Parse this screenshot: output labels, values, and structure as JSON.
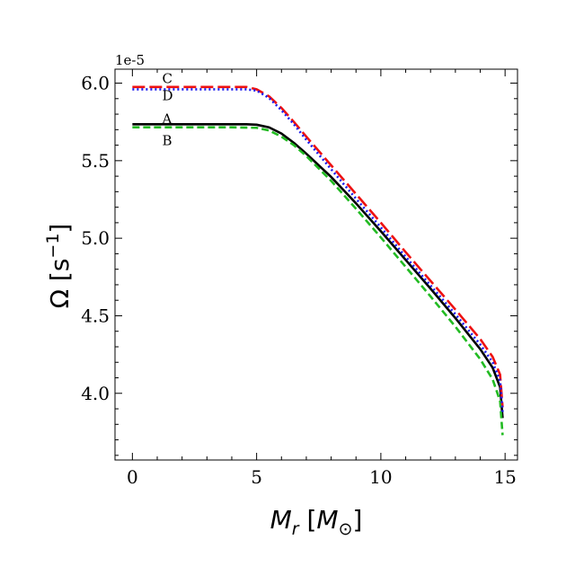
{
  "chart_data": {
    "type": "line",
    "xlabel": "M_r [M_⊙]",
    "ylabel": "Ω [s⁻¹]",
    "y_offset_text": "1e-5",
    "xlim": [
      -0.7,
      15.5
    ],
    "ylim": [
      3.57,
      6.09
    ],
    "xticks": [
      0,
      5,
      10,
      15
    ],
    "xtick_labels": [
      "0",
      "5",
      "10",
      "15"
    ],
    "yticks": [
      4.0,
      4.5,
      5.0,
      5.5,
      6.0
    ],
    "ytick_labels": [
      "4.0",
      "4.5",
      "5.0",
      "5.5",
      "6.0"
    ],
    "x_minor_step": 1,
    "y_minor_step": 0.1,
    "grid": false,
    "series": [
      {
        "name": "A",
        "color": "#000000",
        "style": "solid",
        "x": [
          0,
          2,
          4,
          4.6,
          5,
          5.5,
          6,
          6.5,
          7,
          8,
          9,
          10,
          11,
          12,
          13,
          14,
          14.5,
          14.8,
          14.9
        ],
        "y": [
          5.735,
          5.735,
          5.735,
          5.735,
          5.732,
          5.715,
          5.675,
          5.615,
          5.545,
          5.395,
          5.225,
          5.045,
          4.86,
          4.675,
          4.485,
          4.285,
          4.165,
          4.04,
          3.84
        ]
      },
      {
        "name": "B",
        "color": "#22bb22",
        "style": "dashed",
        "x": [
          0,
          2,
          4,
          5,
          5.5,
          6,
          6.5,
          7,
          8,
          9,
          10,
          11,
          12,
          13,
          14,
          14.5,
          14.8,
          14.9
        ],
        "y": [
          5.715,
          5.715,
          5.715,
          5.712,
          5.695,
          5.655,
          5.6,
          5.53,
          5.37,
          5.19,
          5.005,
          4.815,
          4.625,
          4.43,
          4.22,
          4.09,
          3.95,
          3.73
        ]
      },
      {
        "name": "C",
        "color": "#ee1111",
        "style": "longdash",
        "x": [
          0,
          2,
          4,
          4.6,
          5,
          5.5,
          6,
          6.5,
          7,
          8,
          9,
          10,
          11,
          12,
          13,
          14,
          14.5,
          14.8,
          14.9
        ],
        "y": [
          5.975,
          5.975,
          5.975,
          5.975,
          5.96,
          5.915,
          5.84,
          5.75,
          5.655,
          5.47,
          5.285,
          5.1,
          4.91,
          4.725,
          4.54,
          4.35,
          4.235,
          4.12,
          3.91
        ]
      },
      {
        "name": "D",
        "color": "#1a1aee",
        "style": "dotted",
        "x": [
          0,
          2,
          4,
          4.6,
          5,
          5.5,
          6,
          6.5,
          7,
          8,
          9,
          10,
          11,
          12,
          13,
          14,
          14.5,
          14.8,
          14.9
        ],
        "y": [
          5.96,
          5.96,
          5.96,
          5.96,
          5.952,
          5.905,
          5.825,
          5.735,
          5.635,
          5.445,
          5.255,
          5.07,
          4.88,
          4.695,
          4.51,
          4.315,
          4.2,
          4.08,
          3.88
        ]
      }
    ],
    "curve_labels": [
      {
        "text": "C",
        "x": 1.2,
        "y": 6.0
      },
      {
        "text": "D",
        "x": 1.2,
        "y": 5.89
      },
      {
        "text": "A",
        "x": 1.2,
        "y": 5.74
      },
      {
        "text": "B",
        "x": 1.2,
        "y": 5.6
      }
    ]
  }
}
